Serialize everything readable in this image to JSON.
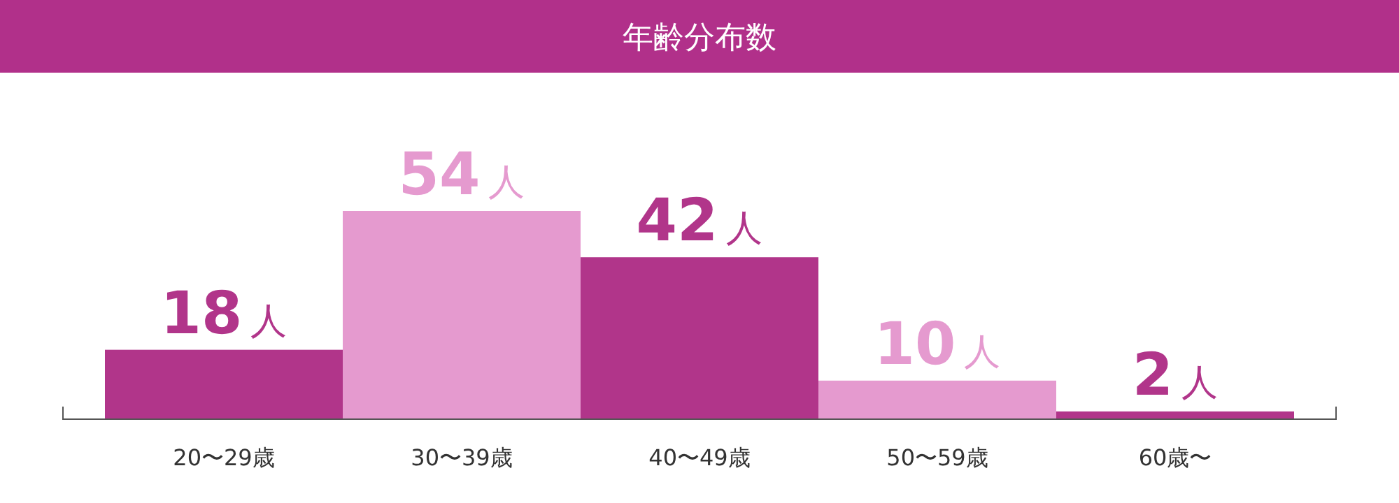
{
  "chart_data": {
    "type": "bar",
    "title": "年齢分布数",
    "categories": [
      "20〜29歳",
      "30〜39歳",
      "40〜49歳",
      "50〜59歳",
      "60歳〜"
    ],
    "values": [
      18,
      54,
      42,
      10,
      2
    ],
    "colors": [
      "#b1358a",
      "#e59acf",
      "#b1358a",
      "#e59acf",
      "#b1358a"
    ],
    "value_labels": [
      "18人",
      "54人",
      "42人",
      "10人",
      "2人"
    ]
  }
}
